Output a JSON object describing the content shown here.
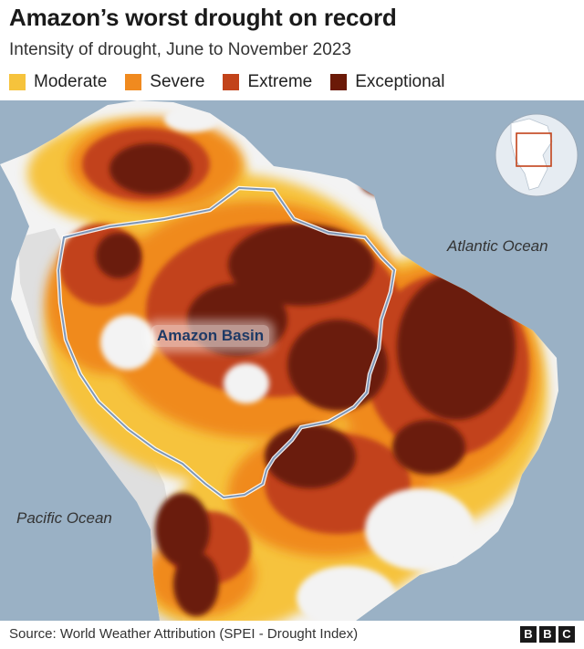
{
  "title": "Amazon’s worst drought on record",
  "subtitle": "Intensity of drought, June to November 2023",
  "legend": [
    {
      "label": "Moderate",
      "color": "#f6c33c"
    },
    {
      "label": "Severe",
      "color": "#f08a1f"
    },
    {
      "label": "Extreme",
      "color": "#c2431a"
    },
    {
      "label": "Exceptional",
      "color": "#6b1a08"
    }
  ],
  "map": {
    "ocean_color": "#9ab1c5",
    "land_color": "#f3f3f3",
    "basin_outline_color": "#8aa2c0",
    "labels": {
      "atlantic": "Atlantic Ocean",
      "pacific": "Pacific Ocean",
      "basin": "Amazon Basin"
    }
  },
  "footer": {
    "source": "Source: World Weather Attribution (SPEI - Drought Index)",
    "logo": [
      "B",
      "B",
      "C"
    ]
  }
}
